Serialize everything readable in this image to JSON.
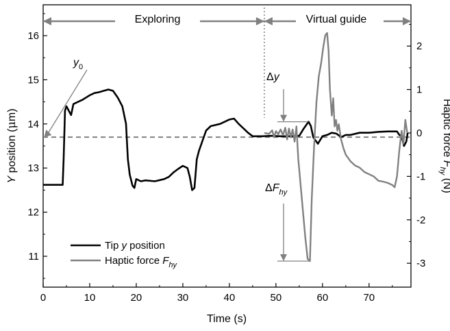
{
  "chart_data": {
    "type": "line",
    "xlabel": "Time (s)",
    "ylabel": {
      "text_italic": "Y",
      "text_rest": " position (",
      "unit_mu": "μ",
      "unit_rest": "m)"
    },
    "y2label": {
      "text": "Haptic force ",
      "symbol": "F",
      "subscript": "hy",
      "unit": " (N)"
    },
    "xlim": [
      0,
      79
    ],
    "ylim": [
      10.3,
      16.7
    ],
    "y2lim": [
      -3.55,
      2.95
    ],
    "xticks": [
      0,
      10,
      20,
      30,
      40,
      50,
      60,
      70
    ],
    "yticks": [
      11,
      12,
      13,
      14,
      15,
      16
    ],
    "y2ticks": [
      -3,
      -2,
      -1,
      0,
      1,
      2
    ],
    "phases": [
      {
        "label": "Exploring",
        "start": 0,
        "end": 47.5
      },
      {
        "label": "Virtual guide",
        "start": 47.5,
        "end": 79
      }
    ],
    "y0": {
      "label": "y",
      "subscript": "0",
      "value": 13.7
    },
    "annotations": {
      "delta_y": {
        "symbol": "Δ",
        "var": "y"
      },
      "delta_f": {
        "symbol": "Δ",
        "var": "F",
        "subscript": "hy"
      }
    },
    "legend": {
      "position": "bottom-left",
      "entries": [
        {
          "text": "Tip ",
          "italic": "y",
          "rest": " position"
        },
        {
          "text": "Haptic force ",
          "italic": "F",
          "subscript": "hy"
        }
      ]
    },
    "colors": {
      "tip": "#000000",
      "force": "#808080",
      "guide": "#808080"
    },
    "series": [
      {
        "name": "Tip y position",
        "axis": "left",
        "points": [
          [
            0,
            12.62
          ],
          [
            4.2,
            12.62
          ],
          [
            4.4,
            13.2
          ],
          [
            4.7,
            14.3
          ],
          [
            5.0,
            14.4
          ],
          [
            5.5,
            14.3
          ],
          [
            6.0,
            14.2
          ],
          [
            6.5,
            14.45
          ],
          [
            7.5,
            14.5
          ],
          [
            8.5,
            14.55
          ],
          [
            10,
            14.65
          ],
          [
            11,
            14.7
          ],
          [
            12,
            14.72
          ],
          [
            13,
            14.75
          ],
          [
            14,
            14.78
          ],
          [
            15,
            14.75
          ],
          [
            16,
            14.6
          ],
          [
            17,
            14.4
          ],
          [
            17.8,
            14.0
          ],
          [
            18.2,
            13.2
          ],
          [
            18.6,
            12.85
          ],
          [
            19.2,
            12.6
          ],
          [
            19.6,
            12.55
          ],
          [
            20,
            12.75
          ],
          [
            21,
            12.7
          ],
          [
            22,
            12.72
          ],
          [
            24,
            12.7
          ],
          [
            26,
            12.75
          ],
          [
            27,
            12.8
          ],
          [
            28,
            12.9
          ],
          [
            29,
            12.98
          ],
          [
            30,
            13.05
          ],
          [
            31,
            13.0
          ],
          [
            31.5,
            12.8
          ],
          [
            32,
            12.5
          ],
          [
            32.5,
            12.55
          ],
          [
            33,
            13.2
          ],
          [
            33.5,
            13.4
          ],
          [
            34,
            13.55
          ],
          [
            35,
            13.85
          ],
          [
            36,
            13.95
          ],
          [
            38,
            14.0
          ],
          [
            40,
            14.1
          ],
          [
            41,
            14.12
          ],
          [
            42,
            14.0
          ],
          [
            43,
            13.9
          ],
          [
            44,
            13.8
          ],
          [
            45,
            13.72
          ],
          [
            47,
            13.72
          ],
          [
            49,
            13.73
          ],
          [
            51,
            13.72
          ],
          [
            53,
            13.72
          ],
          [
            55,
            13.73
          ],
          [
            56,
            13.9
          ],
          [
            57,
            14.05
          ],
          [
            57.5,
            13.95
          ],
          [
            58,
            13.7
          ],
          [
            59,
            13.55
          ],
          [
            60,
            13.72
          ],
          [
            61,
            13.75
          ],
          [
            62,
            13.8
          ],
          [
            63,
            13.78
          ],
          [
            64,
            13.7
          ],
          [
            65,
            13.75
          ],
          [
            66,
            13.75
          ],
          [
            68,
            13.8
          ],
          [
            70,
            13.8
          ],
          [
            72,
            13.82
          ],
          [
            74,
            13.83
          ],
          [
            76,
            13.83
          ],
          [
            76.5,
            13.75
          ],
          [
            77,
            13.72
          ],
          [
            77.5,
            13.5
          ],
          [
            78,
            13.6
          ],
          [
            78.3,
            13.8
          ]
        ]
      },
      {
        "name": "Haptic force Fhy",
        "axis": "right",
        "points": [
          [
            47.5,
            0.0
          ],
          [
            48.5,
            -0.02
          ],
          [
            49.2,
            0.06
          ],
          [
            49.6,
            -0.1
          ],
          [
            50,
            0.04
          ],
          [
            50.5,
            -0.03
          ],
          [
            51,
            0.08
          ],
          [
            51.5,
            -0.05
          ],
          [
            52,
            0.12
          ],
          [
            52.4,
            -0.15
          ],
          [
            52.8,
            0.1
          ],
          [
            53.2,
            -0.1
          ],
          [
            53.6,
            0.08
          ],
          [
            54,
            -0.2
          ],
          [
            54.4,
            0.15
          ],
          [
            54.8,
            -0.6
          ],
          [
            55.3,
            -1.2
          ],
          [
            55.8,
            -1.8
          ],
          [
            56.3,
            -2.4
          ],
          [
            56.8,
            -2.9
          ],
          [
            57.3,
            -2.95
          ],
          [
            57.7,
            -1.5
          ],
          [
            58.2,
            -0.3
          ],
          [
            58.7,
            0.7
          ],
          [
            59.2,
            1.3
          ],
          [
            59.7,
            1.6
          ],
          [
            60.2,
            2.0
          ],
          [
            60.6,
            2.25
          ],
          [
            61.0,
            2.3
          ],
          [
            61.3,
            1.9
          ],
          [
            61.6,
            1.0
          ],
          [
            62,
            0.4
          ],
          [
            62.3,
            0.8
          ],
          [
            62.6,
            0.15
          ],
          [
            62.9,
            0.3
          ],
          [
            63.2,
            0.05
          ],
          [
            63.5,
            0.2
          ],
          [
            64,
            -0.15
          ],
          [
            64.5,
            -0.35
          ],
          [
            65,
            -0.5
          ],
          [
            66,
            -0.65
          ],
          [
            67,
            -0.75
          ],
          [
            68,
            -0.8
          ],
          [
            69,
            -0.9
          ],
          [
            70,
            -0.95
          ],
          [
            71,
            -1.0
          ],
          [
            72,
            -1.1
          ],
          [
            73,
            -1.12
          ],
          [
            74,
            -1.15
          ],
          [
            75,
            -1.2
          ],
          [
            75.5,
            -1.25
          ],
          [
            76,
            -1.0
          ],
          [
            76.5,
            -0.4
          ],
          [
            77,
            0.05
          ],
          [
            77.4,
            -0.25
          ],
          [
            77.8,
            0.3
          ],
          [
            78.2,
            0.0
          ]
        ]
      }
    ]
  }
}
